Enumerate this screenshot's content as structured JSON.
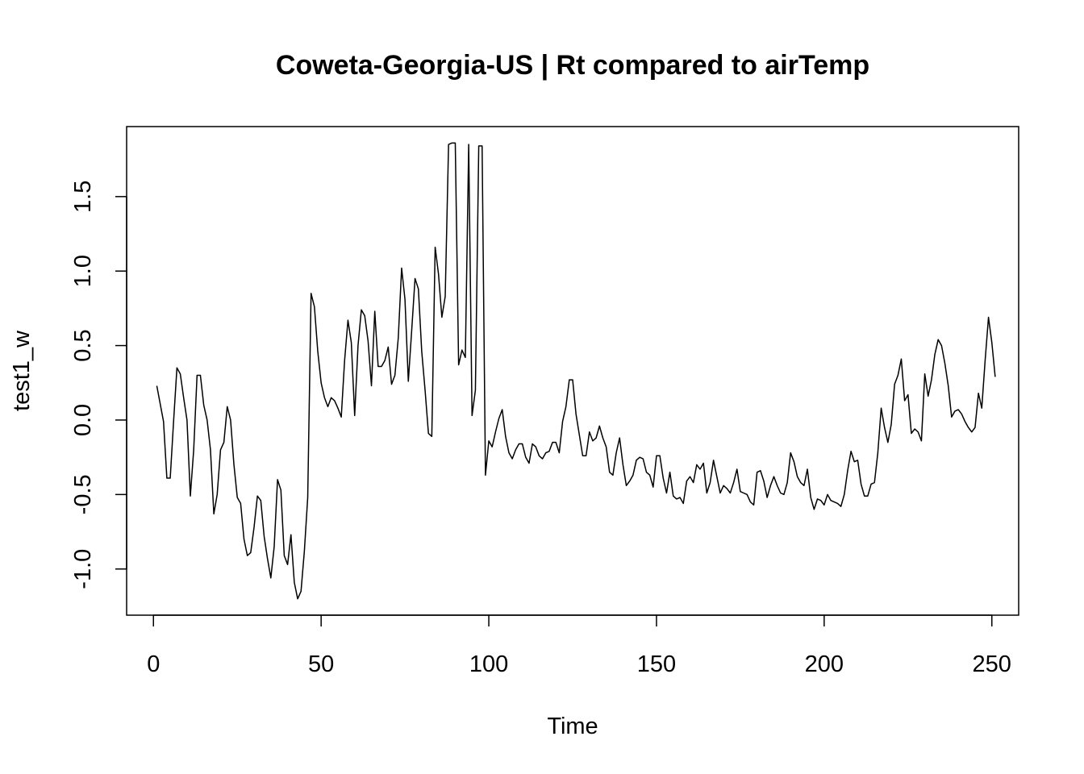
{
  "chart_data": {
    "type": "line",
    "title": "Coweta-Georgia-US | Rt compared to airTemp",
    "xlabel": "Time",
    "ylabel": "test1_w",
    "xlim": [
      -8,
      258
    ],
    "ylim": [
      -1.31,
      1.97
    ],
    "xticks": [
      0,
      50,
      100,
      150,
      200,
      250
    ],
    "yticks": [
      -1.0,
      -0.5,
      0.0,
      0.5,
      1.0,
      1.5
    ],
    "ytick_labels": [
      "-1.0",
      "-0.5",
      "0.0",
      "0.5",
      "1.0",
      "1.5"
    ],
    "xtick_labels": [
      "0",
      "50",
      "100",
      "150",
      "200",
      "250"
    ],
    "grid": false,
    "box": true,
    "color": "#000000",
    "series": [
      {
        "x_start": 1,
        "x_step": 1,
        "values": [
          0.23,
          0.11,
          -0.01,
          -0.39,
          -0.39,
          -0.01,
          0.35,
          0.31,
          0.15,
          0.0,
          -0.51,
          -0.2,
          0.3,
          0.3,
          0.1,
          0.0,
          -0.2,
          -0.63,
          -0.5,
          -0.2,
          -0.15,
          0.09,
          0.0,
          -0.3,
          -0.52,
          -0.56,
          -0.8,
          -0.91,
          -0.89,
          -0.72,
          -0.51,
          -0.54,
          -0.78,
          -0.93,
          -1.06,
          -0.85,
          -0.4,
          -0.47,
          -0.91,
          -0.97,
          -0.77,
          -1.09,
          -1.2,
          -1.15,
          -0.88,
          -0.52,
          0.85,
          0.76,
          0.46,
          0.25,
          0.15,
          0.09,
          0.15,
          0.13,
          0.08,
          0.02,
          0.4,
          0.67,
          0.52,
          0.03,
          0.5,
          0.74,
          0.7,
          0.53,
          0.23,
          0.73,
          0.36,
          0.36,
          0.4,
          0.49,
          0.24,
          0.3,
          0.55,
          1.02,
          0.81,
          0.26,
          0.6,
          0.95,
          0.88,
          0.46,
          0.2,
          -0.09,
          -0.11,
          1.16,
          0.98,
          0.69,
          0.83,
          1.85,
          1.86,
          1.86,
          0.37,
          0.47,
          0.42,
          1.85,
          0.03,
          0.2,
          1.84,
          1.84,
          -0.37,
          -0.14,
          -0.18,
          -0.08,
          0.01,
          0.07,
          -0.11,
          -0.22,
          -0.26,
          -0.2,
          -0.16,
          -0.16,
          -0.25,
          -0.29,
          -0.16,
          -0.18,
          -0.24,
          -0.26,
          -0.22,
          -0.21,
          -0.15,
          -0.15,
          -0.22,
          -0.01,
          0.09,
          0.27,
          0.27,
          0.04,
          -0.1,
          -0.24,
          -0.24,
          -0.08,
          -0.14,
          -0.12,
          -0.04,
          -0.12,
          -0.18,
          -0.35,
          -0.37,
          -0.22,
          -0.12,
          -0.3,
          -0.44,
          -0.41,
          -0.37,
          -0.27,
          -0.25,
          -0.26,
          -0.35,
          -0.37,
          -0.45,
          -0.24,
          -0.24,
          -0.39,
          -0.49,
          -0.35,
          -0.51,
          -0.53,
          -0.52,
          -0.56,
          -0.41,
          -0.38,
          -0.42,
          -0.3,
          -0.33,
          -0.29,
          -0.49,
          -0.42,
          -0.27,
          -0.38,
          -0.49,
          -0.44,
          -0.46,
          -0.49,
          -0.42,
          -0.33,
          -0.48,
          -0.49,
          -0.5,
          -0.55,
          -0.57,
          -0.35,
          -0.34,
          -0.41,
          -0.52,
          -0.44,
          -0.38,
          -0.44,
          -0.49,
          -0.5,
          -0.42,
          -0.22,
          -0.28,
          -0.38,
          -0.42,
          -0.44,
          -0.33,
          -0.52,
          -0.6,
          -0.53,
          -0.54,
          -0.57,
          -0.5,
          -0.54,
          -0.55,
          -0.56,
          -0.58,
          -0.5,
          -0.34,
          -0.21,
          -0.28,
          -0.27,
          -0.43,
          -0.51,
          -0.51,
          -0.43,
          -0.42,
          -0.22,
          0.08,
          -0.05,
          -0.15,
          -0.03,
          0.24,
          0.3,
          0.41,
          0.13,
          0.17,
          -0.09,
          -0.06,
          -0.08,
          -0.14,
          0.31,
          0.16,
          0.27,
          0.44,
          0.54,
          0.5,
          0.38,
          0.23,
          0.02,
          0.06,
          0.07,
          0.04,
          -0.01,
          -0.05,
          -0.08,
          -0.05,
          0.18,
          0.08,
          0.4,
          0.69,
          0.52,
          0.29
        ]
      }
    ]
  }
}
